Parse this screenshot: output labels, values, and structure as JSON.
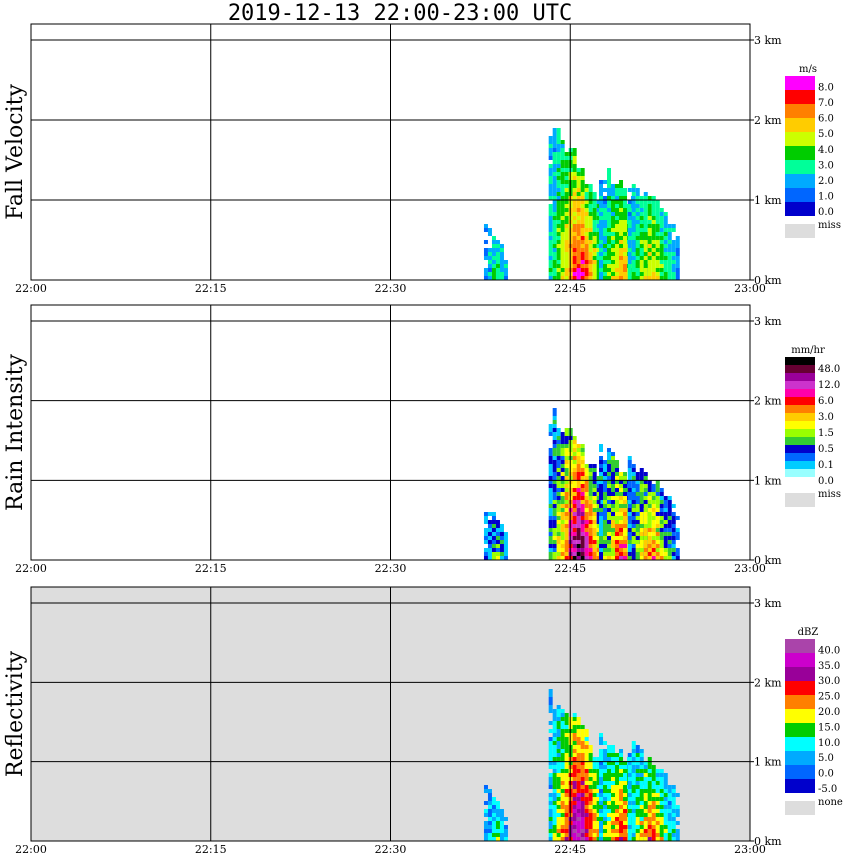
{
  "title": "2019-12-13   22:00-23:00 UTC",
  "chart_data": [
    {
      "type": "heatmap",
      "ylabel": "Fall Velocity",
      "x_ticks": [
        "22:00",
        "22:15",
        "22:30",
        "22:45",
        "23:00"
      ],
      "y_ticks": [
        "0 km",
        "1 km",
        "2 km",
        "3 km"
      ],
      "xlim": [
        "22:00",
        "23:00"
      ],
      "ylim_km": [
        0,
        3.2
      ],
      "grid": true,
      "background": "white",
      "legend": {
        "unit": "m/s",
        "labels": [
          "8.0",
          "7.0",
          "6.0",
          "5.0",
          "4.0",
          "3.0",
          "2.0",
          "1.0",
          "0.0"
        ],
        "colors": [
          "#ff00ff",
          "#ff0000",
          "#ff7f00",
          "#ffcc00",
          "#ccff00",
          "#00cc00",
          "#00ff99",
          "#00aaff",
          "#0066ff",
          "#0000cc"
        ],
        "miss_label": "miss",
        "miss_color": "#dddddd"
      }
    },
    {
      "type": "heatmap",
      "ylabel": "Rain Intensity",
      "x_ticks": [
        "22:00",
        "22:15",
        "22:30",
        "22:45",
        "23:00"
      ],
      "y_ticks": [
        "0 km",
        "1 km",
        "2 km",
        "3 km"
      ],
      "xlim": [
        "22:00",
        "23:00"
      ],
      "ylim_km": [
        0,
        3.2
      ],
      "grid": true,
      "background": "white",
      "legend": {
        "unit": "mm/hr",
        "labels": [
          "48.0",
          "12.0",
          "6.0",
          "3.0",
          "1.5",
          "0.5",
          "0.1",
          "0.0"
        ],
        "colors": [
          "#000000",
          "#660033",
          "#990099",
          "#cc33cc",
          "#ff00aa",
          "#ff0000",
          "#ff7f00",
          "#ffcc00",
          "#ffff00",
          "#99ff00",
          "#33cc33",
          "#0000cc",
          "#0066ff",
          "#00ccff",
          "#99ffff",
          "#ffffff"
        ],
        "miss_label": "miss",
        "miss_color": "#dddddd"
      }
    },
    {
      "type": "heatmap",
      "ylabel": "Reflectivity",
      "x_ticks": [
        "22:00",
        "22:15",
        "22:30",
        "22:45",
        "23:00"
      ],
      "y_ticks": [
        "0 km",
        "1 km",
        "2 km",
        "3 km"
      ],
      "xlim": [
        "22:00",
        "23:00"
      ],
      "ylim_km": [
        0,
        3.2
      ],
      "grid": true,
      "background": "#dddddd",
      "legend": {
        "unit": "dBZ",
        "labels": [
          "40.0",
          "35.0",
          "30.0",
          "25.0",
          "20.0",
          "15.0",
          "10.0",
          "5.0",
          "0.0",
          "-5.0"
        ],
        "colors": [
          "#aa44aa",
          "#cc00cc",
          "#990099",
          "#ff0000",
          "#ff7f00",
          "#ffff00",
          "#00cc00",
          "#00ffff",
          "#00aaff",
          "#0066ff",
          "#0000cc"
        ],
        "miss_label": "none",
        "miss_color": "#dddddd"
      }
    }
  ]
}
